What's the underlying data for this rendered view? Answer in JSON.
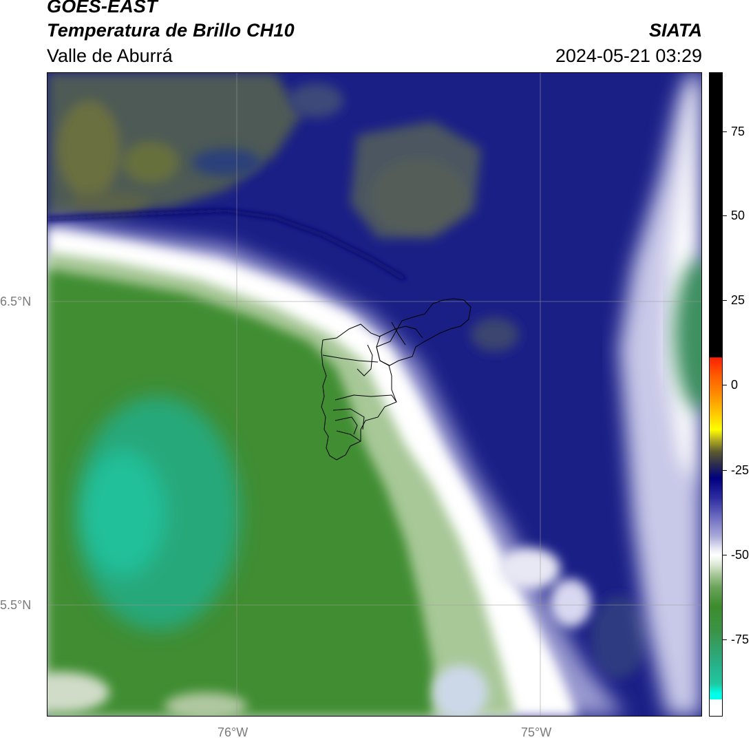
{
  "header": {
    "satellite": "GOES-EAST",
    "product": "Temperatura de Brillo CH10",
    "region": "Valle de Aburrá",
    "organization": "SIATA",
    "datetime": "2024-05-21 03:29"
  },
  "map": {
    "lat_labels": [
      {
        "value": 6.5,
        "text": "6.5°N"
      },
      {
        "value": 5.5,
        "text": "5.5°N"
      }
    ],
    "lon_labels": [
      {
        "value": -76.0,
        "text": "76°W"
      },
      {
        "value": -75.0,
        "text": "75°W"
      }
    ],
    "outline": "Valle de Aburrá municipal boundaries"
  },
  "colorbar": {
    "ticks": [
      {
        "value": 75,
        "text": "75"
      },
      {
        "value": 50,
        "text": "50"
      },
      {
        "value": 25,
        "text": "25"
      },
      {
        "value": 0,
        "text": "0"
      },
      {
        "value": -25,
        "text": "-25"
      },
      {
        "value": -50,
        "text": "-50"
      },
      {
        "value": -75,
        "text": "-75"
      }
    ],
    "range": [
      -92,
      92
    ],
    "colors": {
      "black": "#000000",
      "red": "#ff2000",
      "orange": "#ff8c00",
      "yellow": "#ffff00",
      "olive": "#585830",
      "navy": "#000080",
      "lavender": "#a8a8d8",
      "white": "#ffffff",
      "green": "#3c8c2c",
      "teal": "#20c8a0",
      "cyan": "#00ffe8"
    }
  }
}
